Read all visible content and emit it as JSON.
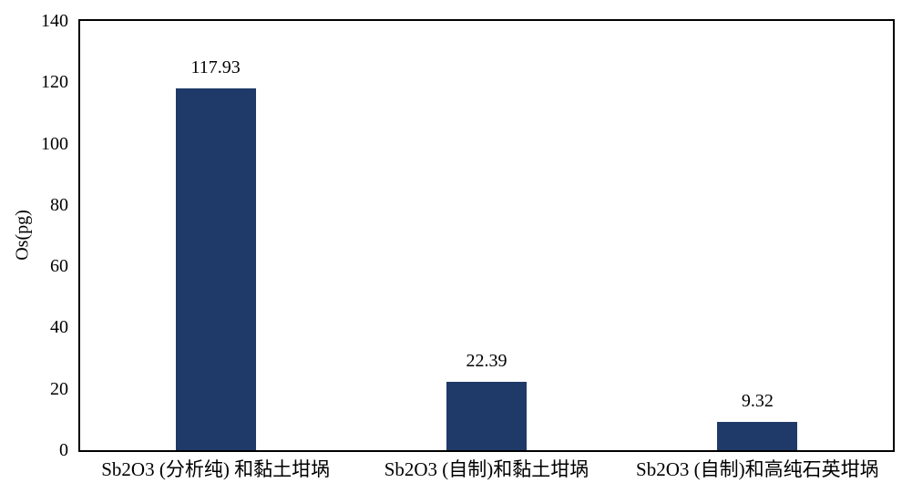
{
  "chart_data": {
    "type": "bar",
    "title": "",
    "categories": [
      "Sb2O3 (分析纯) 和黏土坩埚",
      "Sb2O3 (自制)和黏土坩埚",
      "Sb2O3 (自制)和高纯石英坩埚"
    ],
    "values": [
      117.93,
      22.39,
      9.32
    ],
    "value_labels": [
      "117.93",
      "22.39",
      "9.32"
    ],
    "xlabel": "",
    "ylabel": "Os(pg)",
    "ylim": [
      0,
      140
    ],
    "yticks": [
      0,
      20,
      40,
      60,
      80,
      100,
      120,
      140
    ],
    "grid": false,
    "legend": "none",
    "bar_color": "#1f3a68",
    "axis_color": "#000000",
    "text_color": "#000000",
    "background_color": "#ffffff"
  }
}
